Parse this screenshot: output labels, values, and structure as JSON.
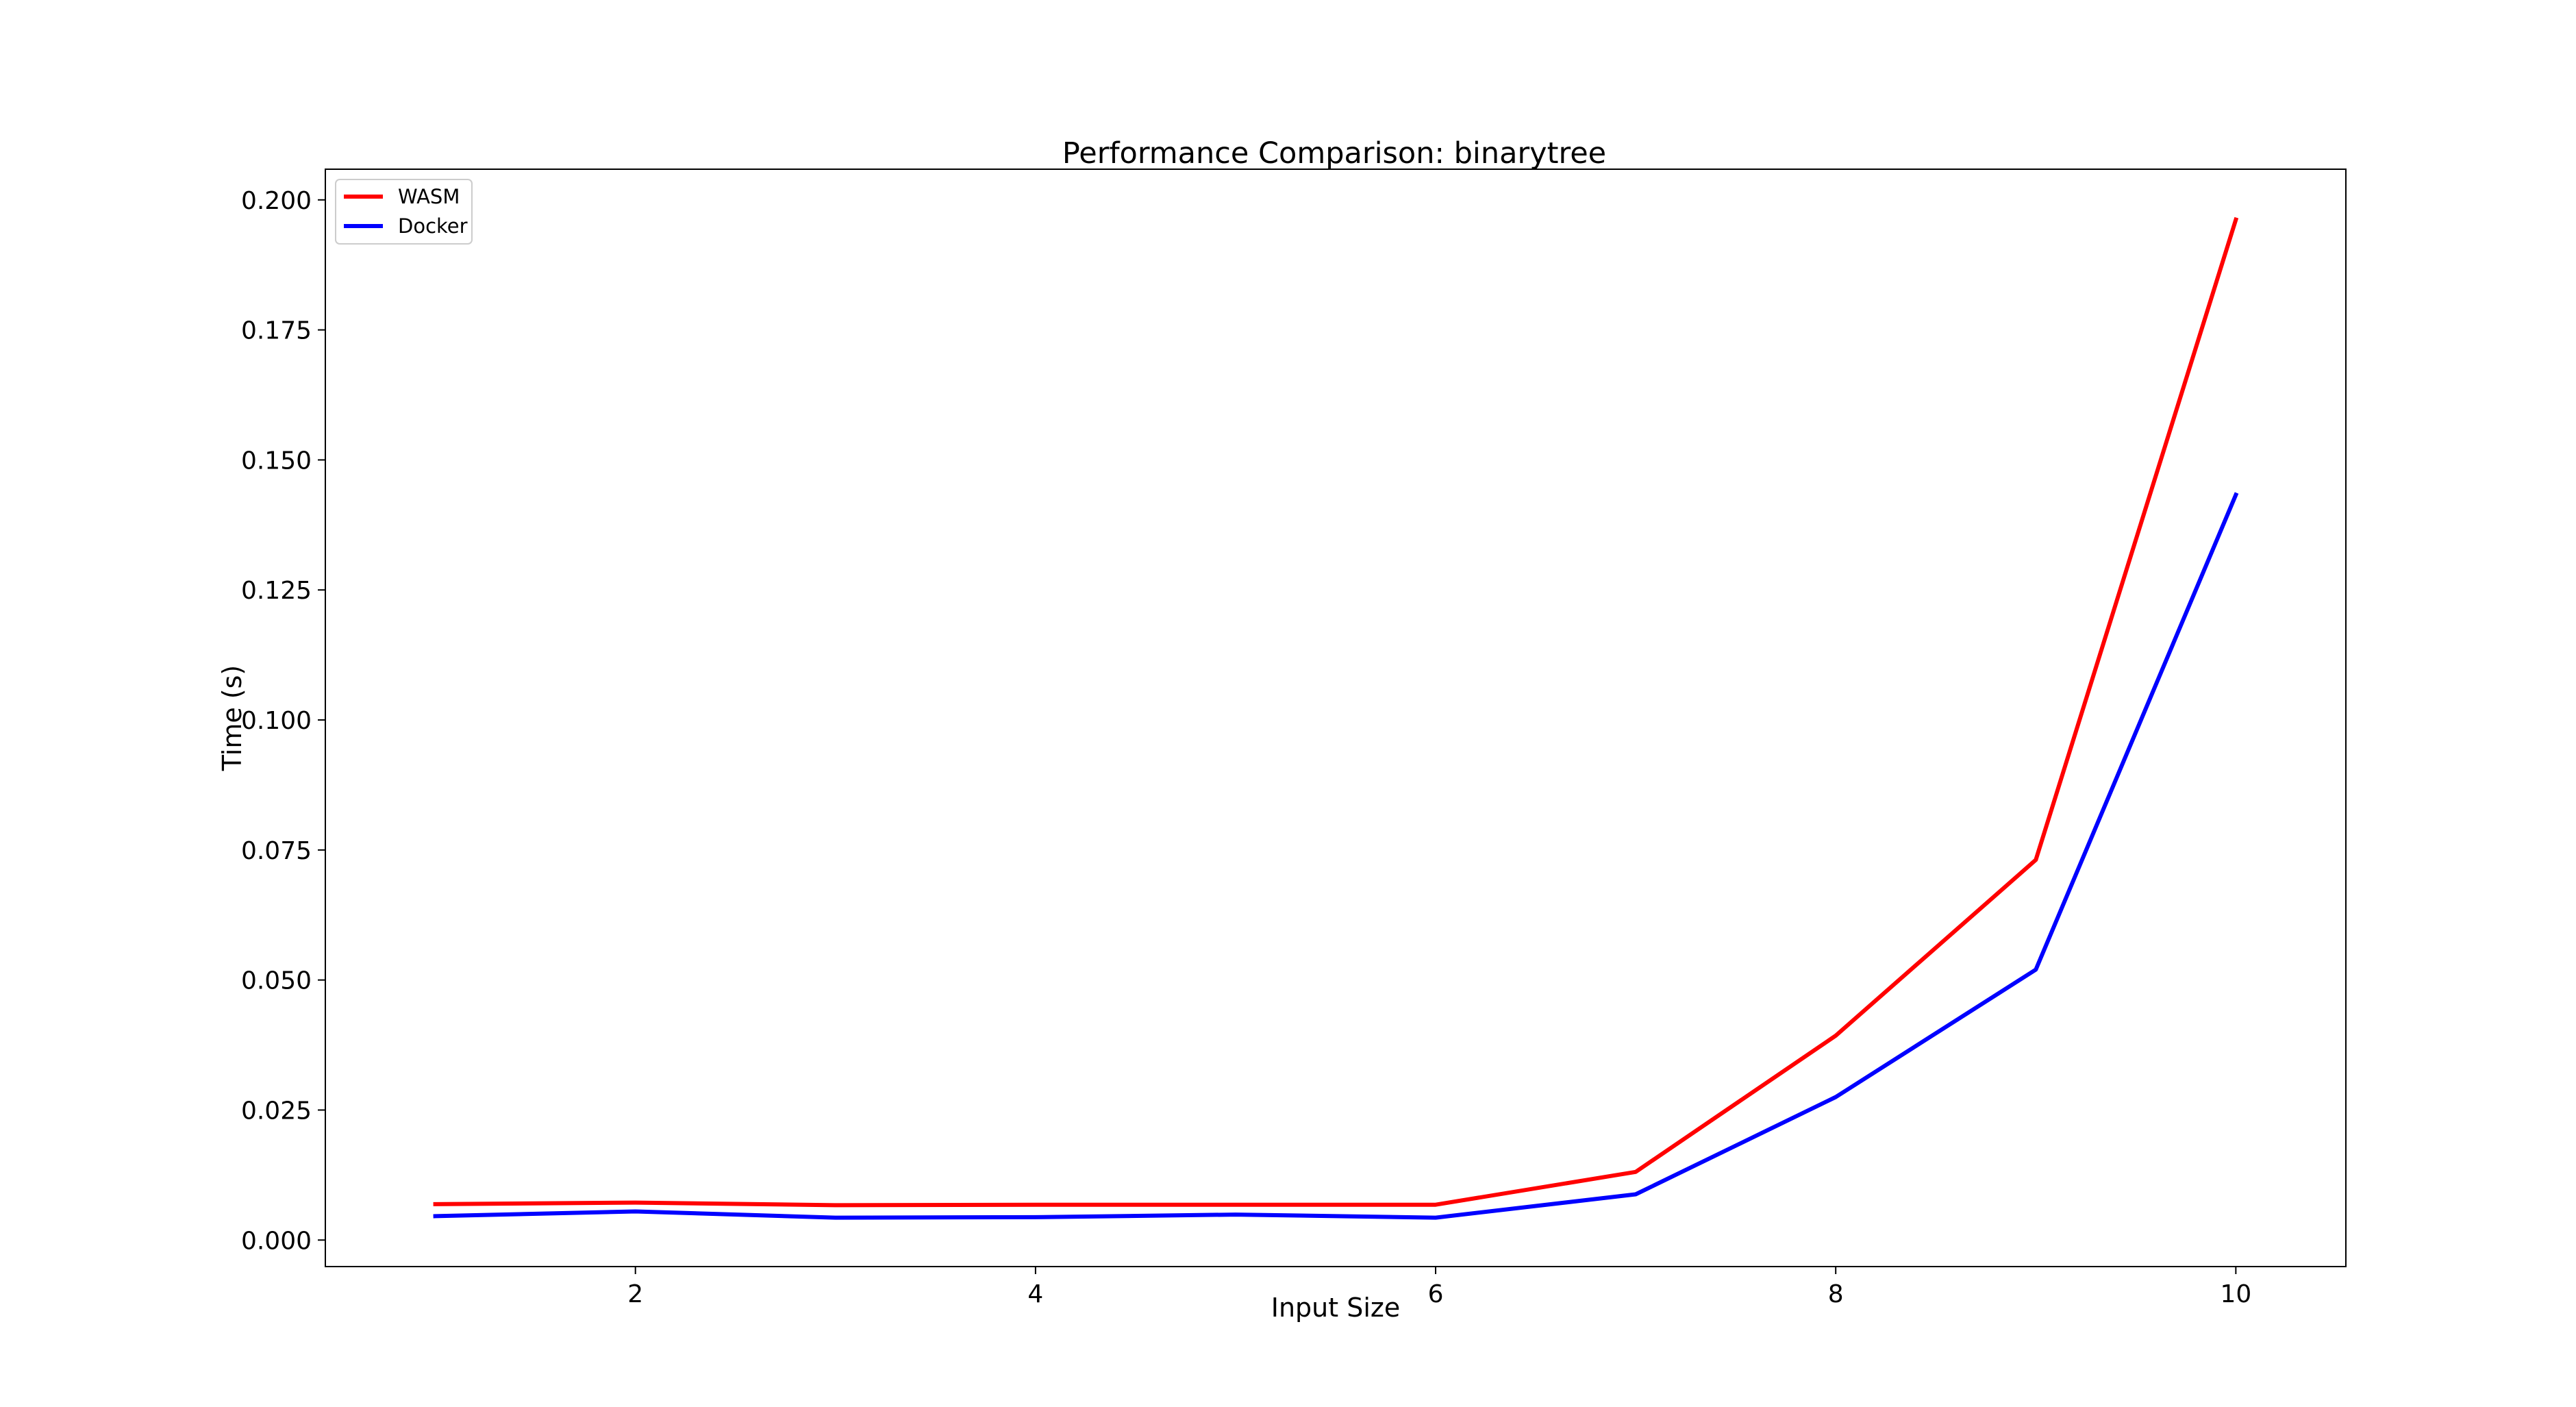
{
  "chart_data": {
    "type": "line",
    "title": "Performance Comparison: binarytree",
    "xlabel": "Input Size",
    "ylabel": "Time (s)",
    "x": [
      1,
      2,
      3,
      4,
      5,
      6,
      7,
      8,
      9,
      10
    ],
    "xlim": [
      0.45,
      10.55
    ],
    "ylim": [
      -0.0051,
      0.2059
    ],
    "xticks": [
      2,
      4,
      6,
      8,
      10
    ],
    "xtick_labels": [
      "2",
      "4",
      "6",
      "8",
      "10"
    ],
    "yticks": [
      0.0,
      0.025,
      0.05,
      0.075,
      0.1,
      0.125,
      0.15,
      0.175,
      0.2
    ],
    "ytick_labels": [
      "0.000",
      "0.025",
      "0.050",
      "0.075",
      "0.100",
      "0.125",
      "0.150",
      "0.175",
      "0.200"
    ],
    "grid": false,
    "legend_position": "top-left",
    "series": [
      {
        "name": "WASM",
        "color": "#ff0000",
        "values": [
          0.0069,
          0.0072,
          0.0067,
          0.0068,
          0.0068,
          0.0068,
          0.0131,
          0.0393,
          0.0731,
          0.1962
        ]
      },
      {
        "name": "Docker",
        "color": "#0000ff",
        "values": [
          0.0046,
          0.0055,
          0.0043,
          0.0044,
          0.0049,
          0.0043,
          0.0088,
          0.0275,
          0.052,
          0.1433
        ]
      }
    ]
  }
}
